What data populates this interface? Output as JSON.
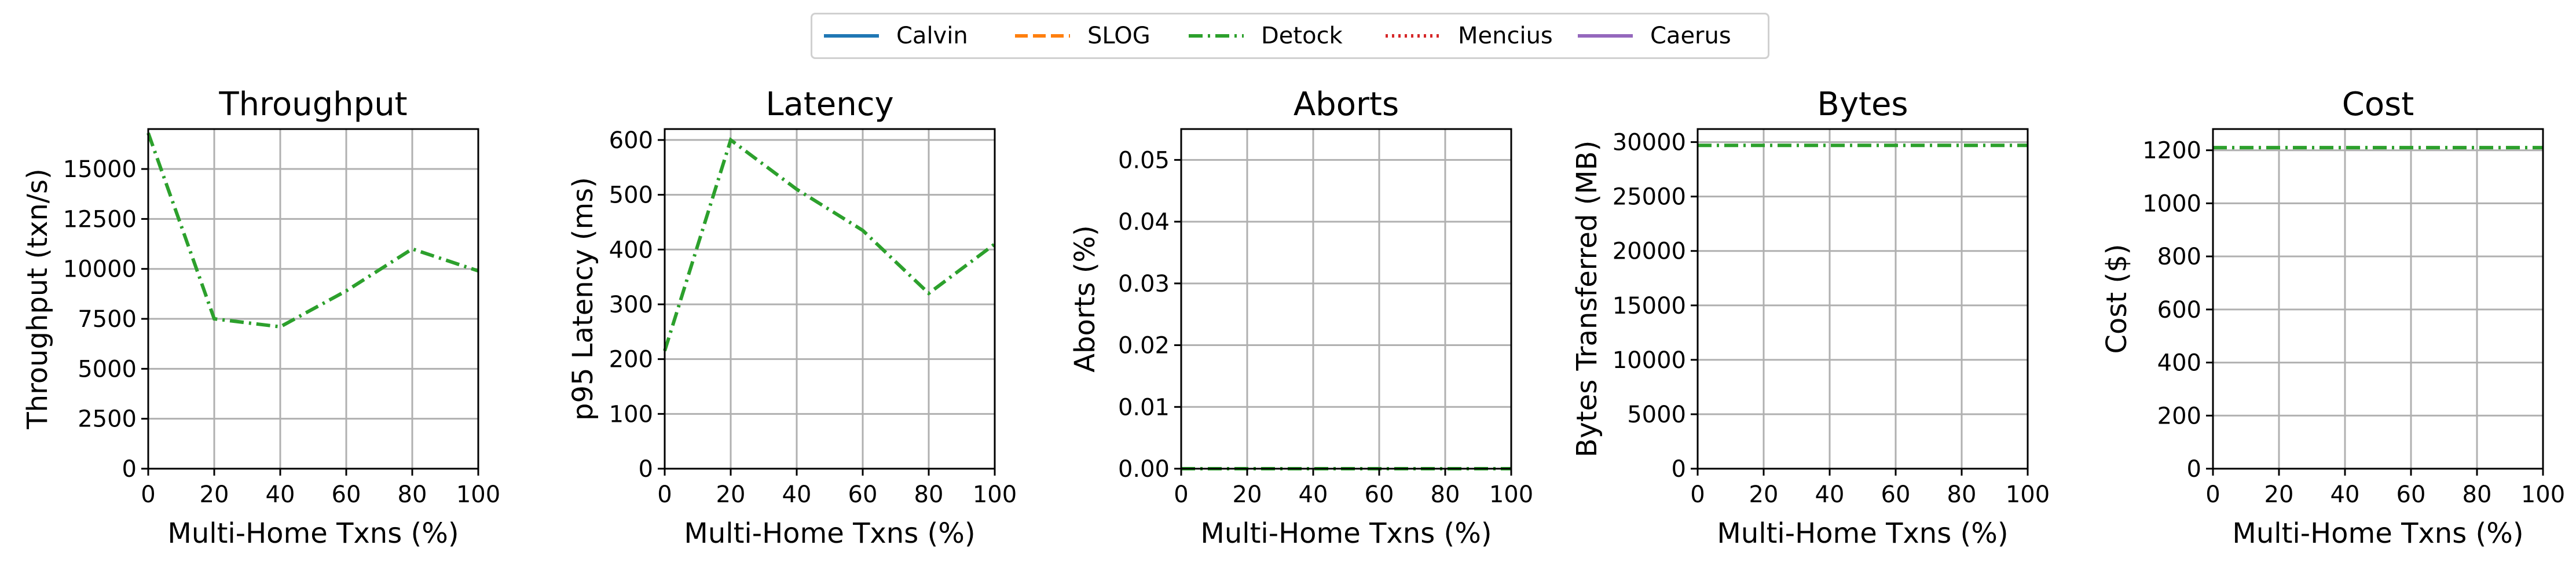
{
  "legend": [
    {
      "name": "Calvin",
      "color": "#1f77b4",
      "dash": "solid"
    },
    {
      "name": "SLOG",
      "color": "#ff7f0e",
      "dash": "dashed"
    },
    {
      "name": "Detock",
      "color": "#2ca02c",
      "dash": "dashdot"
    },
    {
      "name": "Mencius",
      "color": "#d62728",
      "dash": "dotted"
    },
    {
      "name": "Caerus",
      "color": "#9467bd",
      "dash": "solid"
    }
  ],
  "chart_data": [
    {
      "type": "line",
      "title": "Throughput",
      "xlabel": "Multi-Home Txns (%)",
      "ylabel": "Throughput (txn/s)",
      "xlim": [
        0,
        100
      ],
      "ylim": [
        0,
        17000
      ],
      "xticks": [
        0,
        20,
        40,
        60,
        80,
        100
      ],
      "xtick_labels": [
        "0",
        "20",
        "40",
        "60",
        "80",
        "100"
      ],
      "yticks": [
        0,
        2500,
        5000,
        7500,
        10000,
        12500,
        15000
      ],
      "ytick_labels": [
        "0",
        "2500",
        "5000",
        "7500",
        "10000",
        "12500",
        "15000"
      ],
      "grid": true,
      "series": [
        {
          "name": "Detock",
          "x": [
            0,
            20,
            40,
            60,
            80,
            100
          ],
          "y": [
            16800,
            7500,
            7100,
            8900,
            11000,
            9900
          ]
        }
      ]
    },
    {
      "type": "line",
      "title": "Latency",
      "xlabel": "Multi-Home Txns (%)",
      "ylabel": "p95 Latency (ms)",
      "xlim": [
        0,
        100
      ],
      "ylim": [
        0,
        620
      ],
      "xticks": [
        0,
        20,
        40,
        60,
        80,
        100
      ],
      "xtick_labels": [
        "0",
        "20",
        "40",
        "60",
        "80",
        "100"
      ],
      "yticks": [
        0,
        100,
        200,
        300,
        400,
        500,
        600
      ],
      "ytick_labels": [
        "0",
        "100",
        "200",
        "300",
        "400",
        "500",
        "600"
      ],
      "grid": true,
      "series": [
        {
          "name": "Detock",
          "x": [
            0,
            20,
            40,
            60,
            80,
            100
          ],
          "y": [
            215,
            600,
            510,
            435,
            320,
            410
          ]
        }
      ]
    },
    {
      "type": "line",
      "title": "Aborts",
      "xlabel": "Multi-Home Txns (%)",
      "ylabel": "Aborts (%)",
      "xlim": [
        0,
        100
      ],
      "ylim": [
        0,
        0.055
      ],
      "xticks": [
        0,
        20,
        40,
        60,
        80,
        100
      ],
      "xtick_labels": [
        "0",
        "20",
        "40",
        "60",
        "80",
        "100"
      ],
      "yticks": [
        0,
        0.01,
        0.02,
        0.03,
        0.04,
        0.05
      ],
      "ytick_labels": [
        "0.00",
        "0.01",
        "0.02",
        "0.03",
        "0.04",
        "0.05"
      ],
      "grid": true,
      "series": [
        {
          "name": "Detock",
          "x": [
            0,
            20,
            40,
            60,
            80,
            100
          ],
          "y": [
            0,
            0,
            0,
            0,
            0,
            0
          ]
        }
      ]
    },
    {
      "type": "line",
      "title": "Bytes",
      "xlabel": "Multi-Home Txns (%)",
      "ylabel": "Bytes Transferred (MB)",
      "xlim": [
        0,
        100
      ],
      "ylim": [
        0,
        31200
      ],
      "xticks": [
        0,
        20,
        40,
        60,
        80,
        100
      ],
      "xtick_labels": [
        "0",
        "20",
        "40",
        "60",
        "80",
        "100"
      ],
      "yticks": [
        0,
        5000,
        10000,
        15000,
        20000,
        25000,
        30000
      ],
      "ytick_labels": [
        "0",
        "5000",
        "10000",
        "15000",
        "20000",
        "25000",
        "30000"
      ],
      "grid": true,
      "series": [
        {
          "name": "Detock",
          "x": [
            0,
            20,
            40,
            60,
            80,
            100
          ],
          "y": [
            29700,
            29700,
            29700,
            29700,
            29700,
            29700
          ]
        }
      ]
    },
    {
      "type": "line",
      "title": "Cost",
      "xlabel": "Multi-Home Txns (%)",
      "ylabel": "Cost ($)",
      "xlim": [
        0,
        100
      ],
      "ylim": [
        0,
        1280
      ],
      "xticks": [
        0,
        20,
        40,
        60,
        80,
        100
      ],
      "xtick_labels": [
        "0",
        "20",
        "40",
        "60",
        "80",
        "100"
      ],
      "yticks": [
        0,
        200,
        400,
        600,
        800,
        1000,
        1200
      ],
      "ytick_labels": [
        "0",
        "200",
        "400",
        "600",
        "800",
        "1000",
        "1200"
      ],
      "grid": true,
      "series": [
        {
          "name": "Detock",
          "x": [
            0,
            20,
            40,
            60,
            80,
            100
          ],
          "y": [
            1210,
            1210,
            1210,
            1210,
            1210,
            1210
          ]
        }
      ]
    }
  ]
}
